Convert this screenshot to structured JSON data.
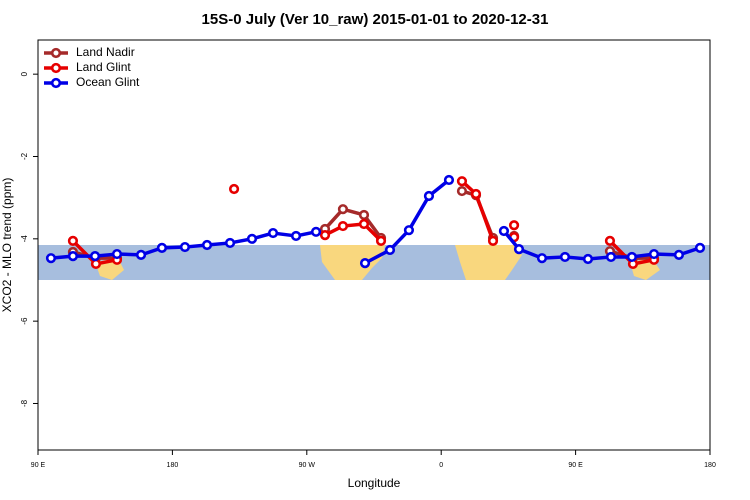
{
  "chart_data": {
    "type": "line",
    "title": "15S-0 July (Ver 10_raw)   2015-01-01 to 2020-12-31",
    "xlabel": "Longitude",
    "ylabel": "XCO2 - MLO trend (ppm)",
    "xlim": [
      90,
      540
    ],
    "ylim": [
      -9.13,
      0.83
    ],
    "xticks": [
      {
        "value": 90,
        "label": "90 E"
      },
      180,
      {
        "value": 270,
        "label": "90 W"
      },
      {
        "value": 360,
        "label": "0"
      },
      {
        "value": 450,
        "label": "90 E"
      },
      {
        "value": 540,
        "label": "180"
      }
    ],
    "yticks": [
      0,
      -2,
      -4,
      -6,
      -8
    ],
    "legend": "top-left",
    "series": [
      {
        "name": "Land Nadir",
        "color": "#a52a2a",
        "x": [
          113.4,
          128.8,
          142.9,
          null,
          282.2,
          294.2,
          308.3,
          319.7,
          null,
          373.9,
          383.3,
          394.7,
          null,
          408.8,
          null,
          473.0,
          488.4,
          502.5
        ],
        "values": [
          -4.32,
          -4.47,
          -4.47,
          null,
          -3.76,
          -3.28,
          -3.42,
          -3.98,
          null,
          -2.84,
          -2.94,
          -3.98,
          null,
          -3.93,
          null,
          -4.3,
          -4.47,
          -4.47
        ]
      },
      {
        "name": "Land Glint",
        "color": "#e60000",
        "x": [
          113.4,
          128.8,
          142.9,
          null,
          221.3,
          null,
          282.2,
          294.2,
          308.3,
          319.7,
          null,
          373.9,
          383.3,
          394.7,
          null,
          408.8,
          null,
          408.8,
          null,
          473.0,
          488.4,
          502.5
        ],
        "values": [
          -4.05,
          -4.61,
          -4.51,
          null,
          -2.79,
          null,
          -3.91,
          -3.69,
          -3.64,
          -4.05,
          null,
          -2.6,
          -2.91,
          -4.05,
          null,
          -3.67,
          null,
          -3.96,
          null,
          -4.05,
          -4.61,
          -4.51
        ]
      },
      {
        "name": "Ocean Glint",
        "color": "#0000e6",
        "x": [
          98.7,
          113.4,
          128.2,
          142.9,
          159.0,
          173.0,
          188.4,
          203.2,
          218.6,
          233.3,
          247.4,
          262.8,
          276.2,
          null,
          309.0,
          325.7,
          338.4,
          351.8,
          365.2,
          null,
          402.0,
          412.1,
          427.5,
          442.9,
          458.3,
          473.7,
          487.7,
          502.5,
          519.2,
          533.3
        ],
        "values": [
          -4.47,
          -4.42,
          -4.42,
          -4.37,
          -4.39,
          -4.22,
          -4.2,
          -4.15,
          -4.1,
          -4.0,
          -3.86,
          -3.93,
          -3.83,
          null,
          -4.59,
          -4.27,
          -3.79,
          -2.96,
          -2.57,
          null,
          -3.81,
          -4.25,
          -4.47,
          -4.44,
          -4.49,
          -4.44,
          -4.44,
          -4.37,
          -4.39,
          -4.22
        ]
      }
    ]
  }
}
